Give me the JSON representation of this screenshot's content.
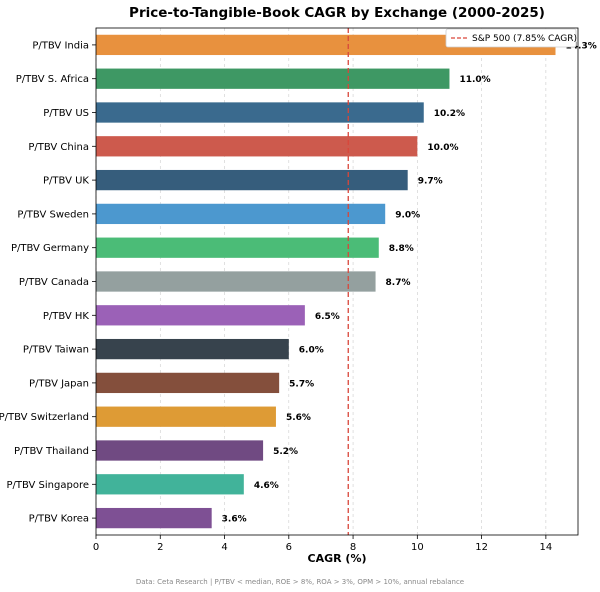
{
  "chart_data": {
    "type": "bar",
    "orientation": "horizontal",
    "title": "Price-to-Tangible-Book CAGR by Exchange (2000-2025)",
    "xlabel": "CAGR (%)",
    "ylabel": "",
    "xlim": [
      0,
      15
    ],
    "xticks": [
      0,
      2,
      4,
      6,
      8,
      10,
      12,
      14
    ],
    "grid": "x-dashed",
    "categories": [
      "P/TBV India",
      "P/TBV S. Africa",
      "P/TBV US",
      "P/TBV China",
      "P/TBV UK",
      "P/TBV Sweden",
      "P/TBV Germany",
      "P/TBV Canada",
      "P/TBV HK",
      "P/TBV Taiwan",
      "P/TBV Japan",
      "P/TBV Switzerland",
      "P/TBV Thailand",
      "P/TBV Singapore",
      "P/TBV Korea"
    ],
    "values": [
      14.3,
      11.0,
      10.2,
      10.0,
      9.7,
      9.0,
      8.8,
      8.7,
      6.5,
      6.0,
      5.7,
      5.6,
      5.2,
      4.6,
      3.6
    ],
    "value_labels": [
      "14.3%",
      "11.0%",
      "10.2%",
      "10.0%",
      "9.7%",
      "9.0%",
      "8.8%",
      "8.7%",
      "6.5%",
      "6.0%",
      "5.7%",
      "5.6%",
      "5.2%",
      "4.6%",
      "3.6%"
    ],
    "colors": [
      "#e8913e",
      "#3e9864",
      "#3a6a8e",
      "#cd5a4d",
      "#365d7c",
      "#4c98cf",
      "#4bbc77",
      "#94a09f",
      "#9b61b7",
      "#37434d",
      "#844f3c",
      "#de9b35",
      "#704a82",
      "#41b39a",
      "#7e5094"
    ],
    "reference_line": {
      "value": 7.85,
      "label": "S&P 500 (7.85% CAGR)",
      "color": "#d9463a"
    },
    "legend_position": "top-right",
    "footnote": "Data: Ceta Research | P/TBV < median, ROE > 8%, ROA > 3%, OPM > 10%, annual rebalance"
  }
}
